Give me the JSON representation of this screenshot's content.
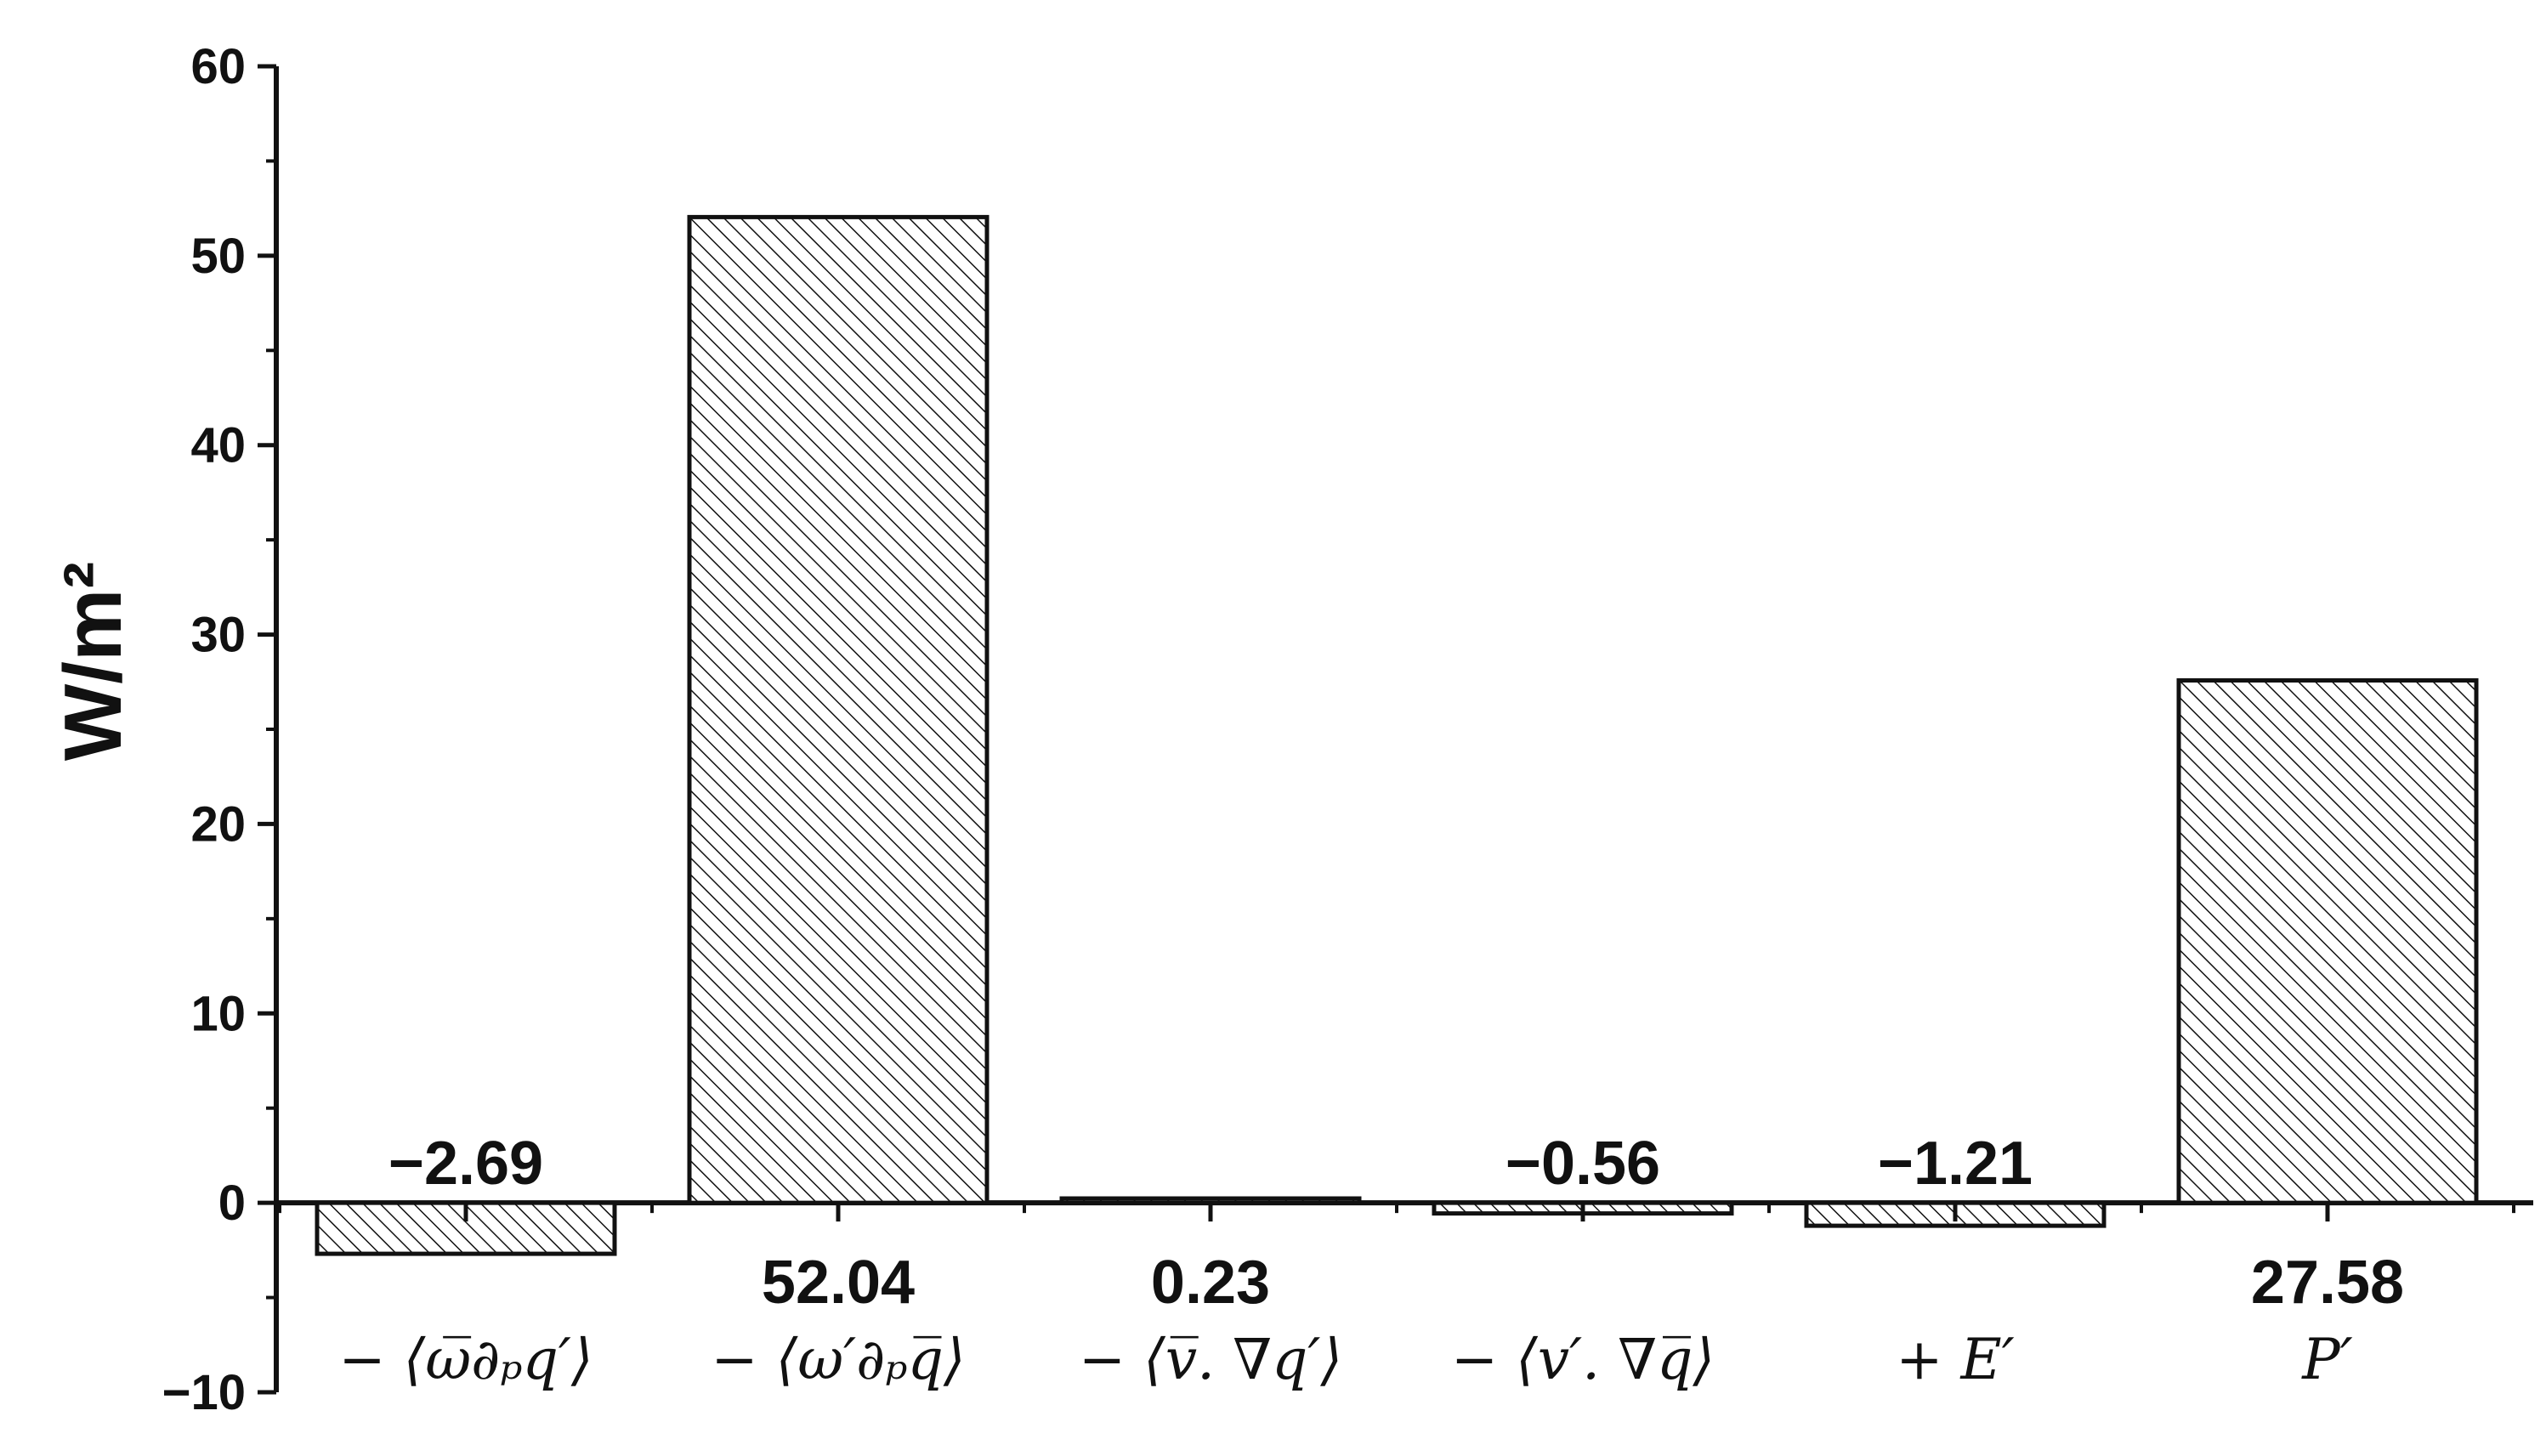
{
  "chart_data": {
    "type": "bar",
    "categories": [
      "− ⟨ω̅∂ₚq′⟩",
      "− ⟨ω′∂ₚq̅⟩",
      "− ⟨v̅. ∇q′⟩",
      "− ⟨v′. ∇q̅⟩",
      "+ E′",
      "P′"
    ],
    "values": [
      -2.69,
      52.04,
      0.23,
      -0.56,
      -1.21,
      27.58
    ],
    "value_labels": [
      "−2.69",
      "52.04",
      "0.23",
      "−0.56",
      "−1.21",
      "27.58"
    ],
    "ylabel": "W/m²",
    "xlabel": "",
    "title": "",
    "ylim": [
      -10,
      60
    ],
    "yticks": [
      -10,
      0,
      10,
      20,
      30,
      40,
      50,
      60
    ],
    "ytick_labels": [
      "−10",
      "0",
      "10",
      "20",
      "30",
      "40",
      "50",
      "60"
    ],
    "grid": false,
    "legend": "none",
    "bar_fill": "hatched (diagonal lines)",
    "colors": {
      "bar_edge": "#111111",
      "hatch": "#111111",
      "bar_fill": "#ffffff",
      "axis": "#111111",
      "text": "#111111"
    }
  }
}
